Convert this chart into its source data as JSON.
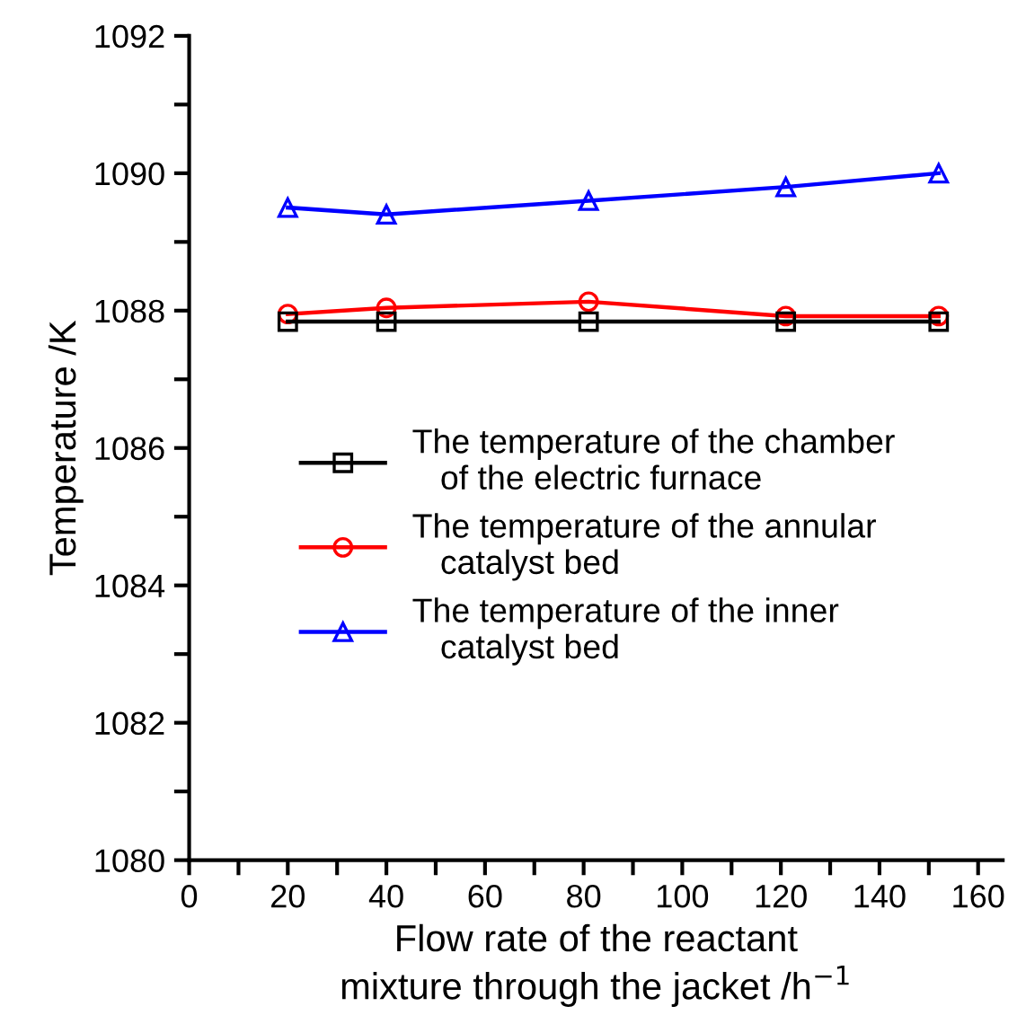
{
  "chart_data": {
    "type": "line",
    "xlabel": "Flow rate of the reactant\nmixture through the jacket /h$^{−1}$",
    "ylabel": "Temperature /K",
    "x": [
      20,
      40,
      81,
      121,
      152
    ],
    "series": [
      {
        "name": "The temperature of the chamber\n   of the electric furnace",
        "color": "#000000",
        "marker": "square",
        "values": [
          1087.84,
          1087.84,
          1087.84,
          1087.84,
          1087.84
        ]
      },
      {
        "name": "The temperature of the annular\n   catalyst bed",
        "color": "#ff0000",
        "marker": "circle",
        "values": [
          1087.95,
          1088.04,
          1088.13,
          1087.92,
          1087.92
        ]
      },
      {
        "name": "The temperature of the inner\n   catalyst bed",
        "color": "#0000ff",
        "marker": "triangle",
        "values": [
          1089.5,
          1089.4,
          1089.6,
          1089.8,
          1090.0
        ]
      }
    ],
    "xlim": [
      0,
      165
    ],
    "ylim": [
      1080,
      1092
    ],
    "xticks": [
      0,
      {
        "value": 10,
        "label": null
      },
      20,
      {
        "value": 30,
        "label": null
      },
      40,
      {
        "value": 50,
        "label": null
      },
      60,
      {
        "value": 70,
        "label": null
      },
      80,
      {
        "value": 90,
        "label": null
      },
      100,
      {
        "value": 110,
        "label": null
      },
      120,
      {
        "value": 130,
        "label": null
      },
      140,
      {
        "value": 150,
        "label": null
      },
      160
    ],
    "yticks": [
      1080,
      {
        "value": 1081,
        "label": null
      },
      1082,
      {
        "value": 1083,
        "label": null
      },
      1084,
      {
        "value": 1085,
        "label": null
      },
      1086,
      {
        "value": 1087,
        "label": null
      },
      1088,
      {
        "value": 1089,
        "label": null
      },
      1090,
      {
        "value": 1091,
        "label": null
      },
      1092
    ],
    "grid": false,
    "legend": "center left",
    "line_style": "solid"
  }
}
